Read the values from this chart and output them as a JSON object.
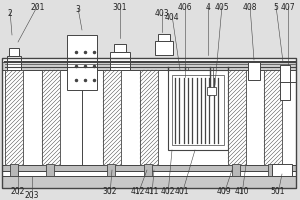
{
  "bg_color": "#d8d8d8",
  "line_color": "#444444",
  "label_color": "#222222",
  "fontsize": 5.5,
  "fig_bg": "#d0d0d0"
}
